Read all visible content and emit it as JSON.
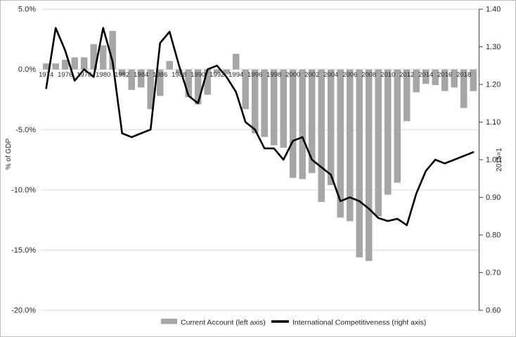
{
  "chart_data": {
    "type": "combo-bar-line",
    "x": [
      1974,
      1975,
      1976,
      1977,
      1978,
      1979,
      1980,
      1981,
      1982,
      1983,
      1984,
      1985,
      1986,
      1987,
      1988,
      1989,
      1990,
      1991,
      1992,
      1993,
      1994,
      1995,
      1996,
      1997,
      1998,
      1999,
      2000,
      2001,
      2002,
      2003,
      2004,
      2005,
      2006,
      2007,
      2008,
      2009,
      2010,
      2011,
      2012,
      2013,
      2014,
      2015,
      2016,
      2017,
      2018,
      2019
    ],
    "series": [
      {
        "name": "Current Account (left axis)",
        "type": "bar",
        "axis": "left",
        "color": "#a6a6a6",
        "values": [
          0.5,
          0.5,
          0.8,
          1.0,
          1.0,
          2.1,
          2.0,
          3.2,
          -0.5,
          -1.7,
          -1.5,
          -3.3,
          -2.2,
          0.7,
          -0.3,
          -2.3,
          -2.9,
          -2.1,
          -0.3,
          -0.4,
          1.3,
          -3.3,
          -5.3,
          -5.6,
          -6.3,
          -6.5,
          -9.0,
          -9.1,
          -8.6,
          -11.0,
          -9.6,
          -12.3,
          -12.6,
          -15.6,
          -15.9,
          -12.2,
          -10.4,
          -9.4,
          -4.3,
          -1.9,
          -1.2,
          -1.3,
          -1.8,
          -1.5,
          -3.2,
          -1.8
        ]
      },
      {
        "name": "International Competitiveness (right axis)",
        "type": "line",
        "axis": "right",
        "color": "#000000",
        "values": [
          1.19,
          1.35,
          1.29,
          1.21,
          1.24,
          1.22,
          1.35,
          1.26,
          1.07,
          1.06,
          1.07,
          1.08,
          1.31,
          1.34,
          1.25,
          1.17,
          1.15,
          1.24,
          1.25,
          1.22,
          1.18,
          1.1,
          1.08,
          1.03,
          1.03,
          1.0,
          1.05,
          1.06,
          1.0,
          0.98,
          0.96,
          0.89,
          0.9,
          0.89,
          0.87,
          0.845,
          0.837,
          0.843,
          0.826,
          0.91,
          0.97,
          1.0,
          0.99,
          1.0,
          1.01,
          1.02
        ]
      }
    ],
    "left_axis": {
      "title": "% of GDP",
      "ticks": [
        "5.0%",
        "0.0%",
        "-5.0%",
        "-10.0%",
        "-15.0%",
        "-20.0%"
      ],
      "tick_values": [
        5,
        0,
        -5,
        -10,
        -15,
        -20
      ],
      "range": [
        -20,
        5
      ]
    },
    "right_axis": {
      "title": "2015=1",
      "ticks": [
        "1.40",
        "1.30",
        "1.20",
        "1.10",
        "1.00",
        "0.90",
        "0.80",
        "0.70",
        "0.60"
      ],
      "tick_values": [
        1.4,
        1.3,
        1.2,
        1.1,
        1.0,
        0.9,
        0.8,
        0.7,
        0.6
      ],
      "range": [
        0.6,
        1.4
      ]
    },
    "x_axis": {
      "labels": [
        "1974",
        "1976",
        "1978",
        "1980",
        "1982",
        "1984",
        "1986",
        "1988",
        "1990",
        "1992",
        "1994",
        "1996",
        "1998",
        "2000",
        "2002",
        "2004",
        "2006",
        "2008",
        "2010",
        "2012",
        "2014",
        "2016",
        "2018"
      ]
    },
    "grid": true,
    "legend_position": "bottom",
    "colors": {
      "gridline": "#d9d9d9",
      "right_axis_line": "#595959",
      "text": "#262626",
      "background": "#ffffff"
    }
  }
}
